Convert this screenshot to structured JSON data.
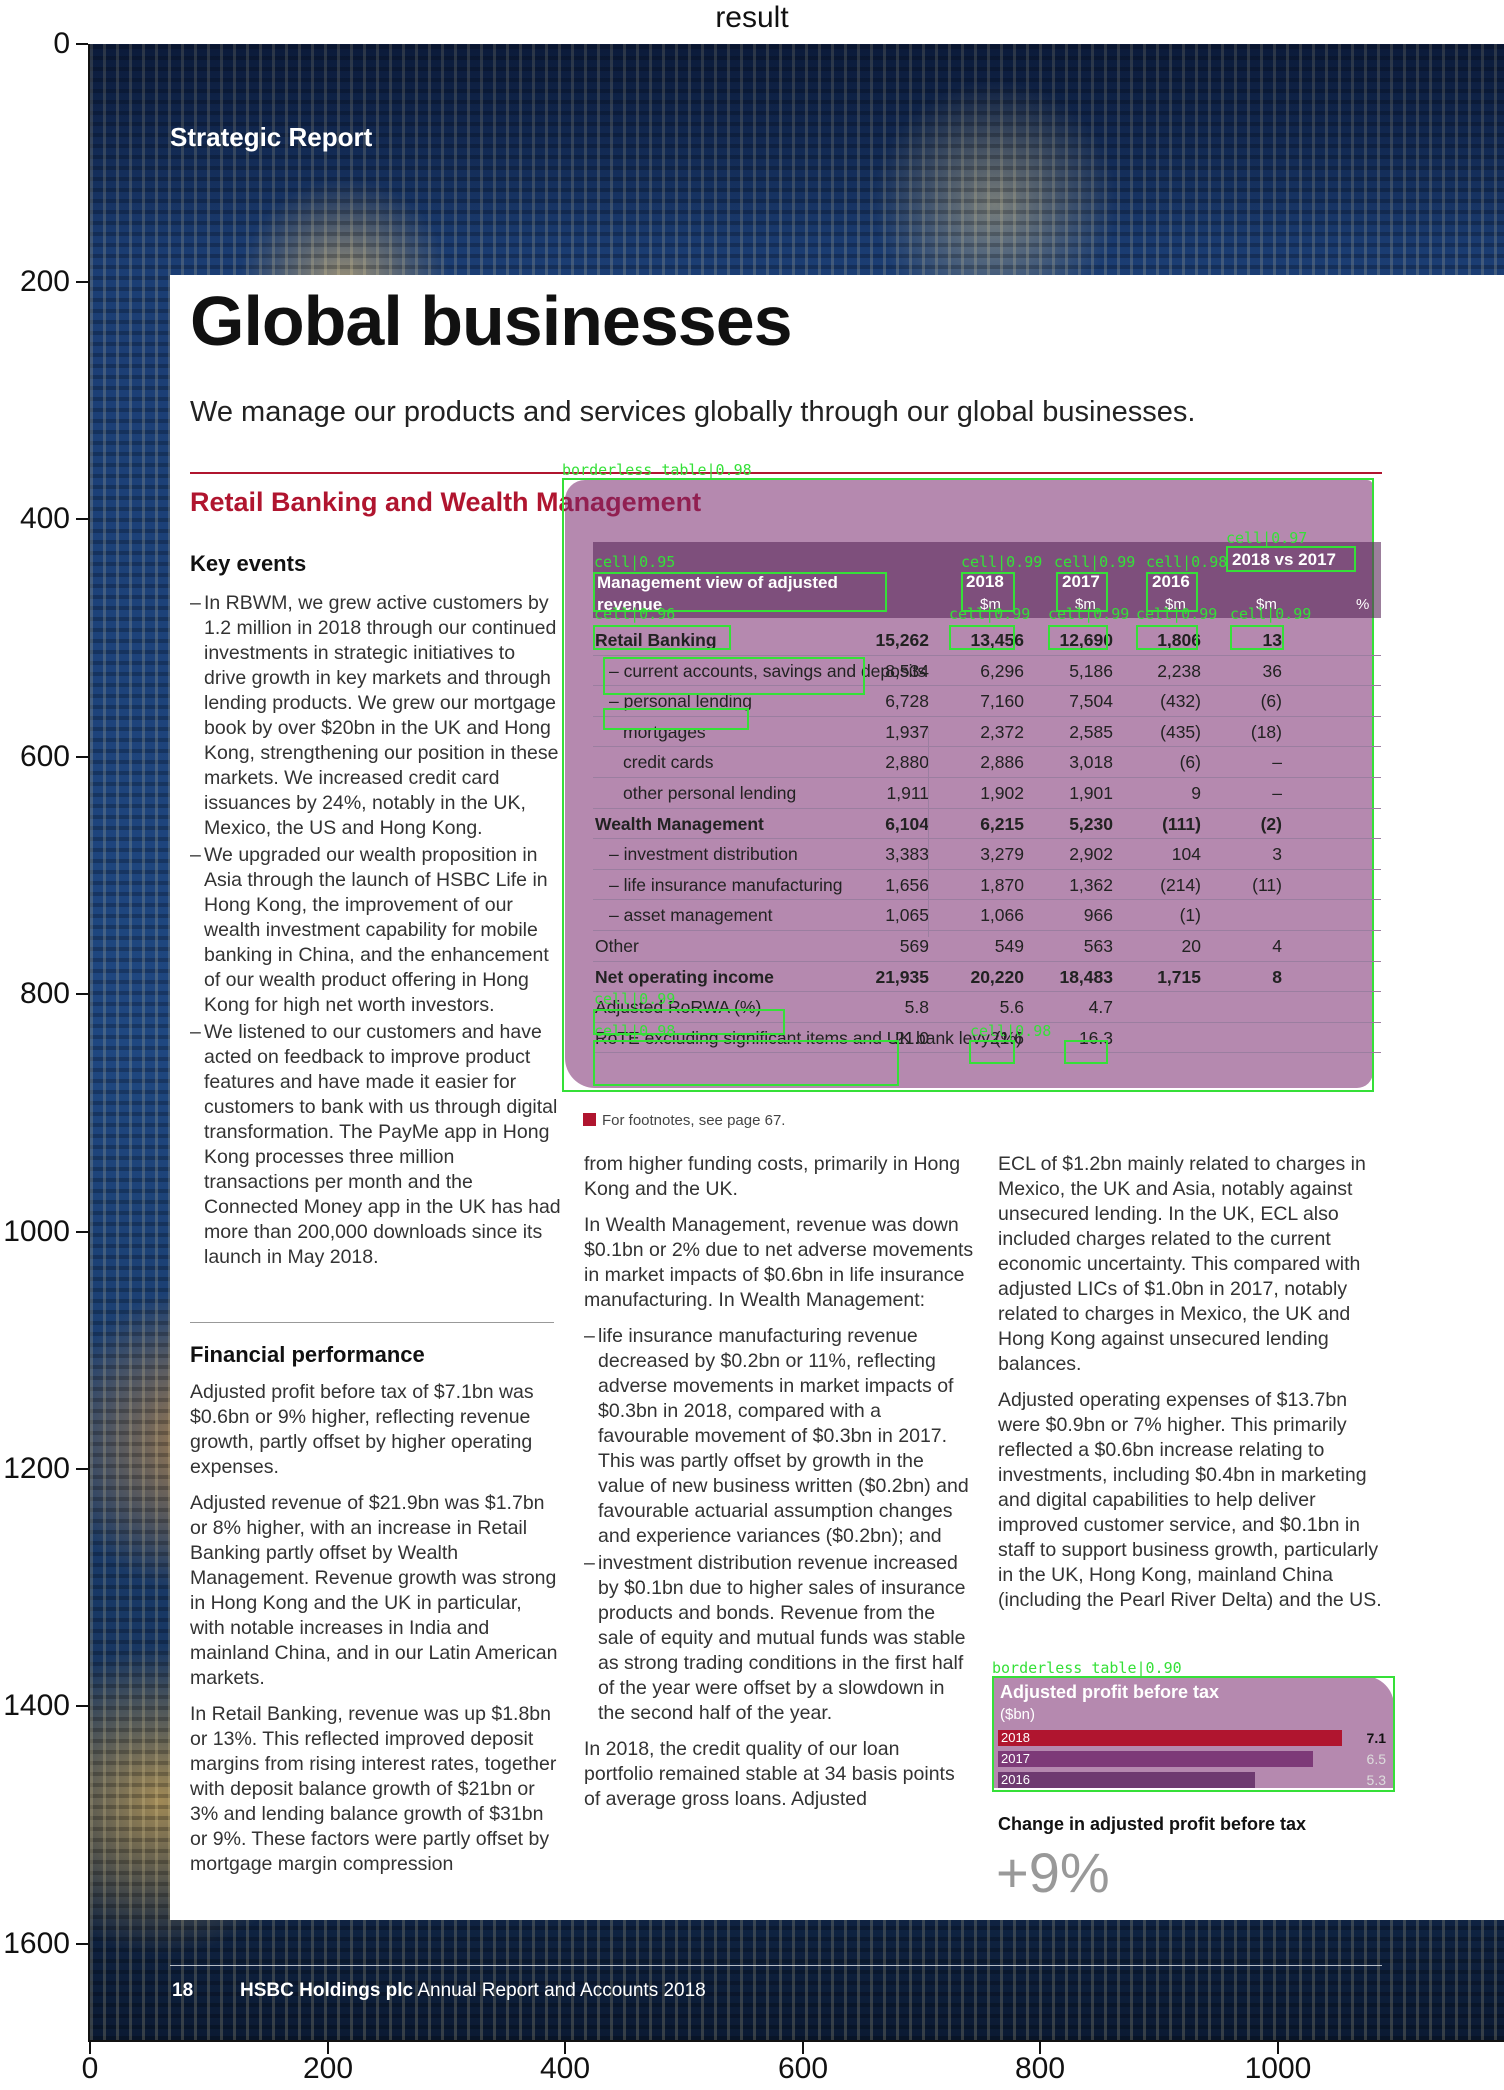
{
  "figure_title": "result",
  "axes": {
    "y_ticks": [
      "0",
      "200",
      "400",
      "600",
      "800",
      "1000",
      "1200",
      "1400",
      "1600"
    ],
    "x_ticks": [
      "0",
      "200",
      "400",
      "600",
      "800",
      "1000"
    ]
  },
  "header": {
    "section": "Strategic Report"
  },
  "page": {
    "title": "Global businesses",
    "subtitle": "We manage our products and services globally through our global businesses."
  },
  "section": {
    "title": "Retail Banking and Wealth Management"
  },
  "key_events": {
    "heading": "Key events",
    "items": [
      "In RBWM, we grew active customers by 1.2 million in 2018 through our continued investments in strategic initiatives to drive growth in key markets and through lending products. We grew our mortgage book by over $20bn in the UK and Hong Kong, strengthening our position in these markets. We increased credit card issuances by 24%, notably in the UK, Mexico, the US and Hong Kong.",
      "We upgraded our wealth proposition in Asia through the launch of HSBC Life in Hong Kong, the improvement of our wealth investment capability for mobile banking in China, and the enhancement of our wealth product offering in Hong Kong for high net worth investors.",
      "We listened to our customers and have acted on feedback to improve product features and have made it easier for customers to bank with us through digital transformation. The PayMe app in Hong Kong processes three million transactions per month and the Connected Money app in the UK has had more than 200,000 downloads since its launch in May 2018."
    ]
  },
  "financial_performance": {
    "heading": "Financial performance",
    "paragraphs": [
      "Adjusted profit before tax of $7.1bn was $0.6bn or 9% higher, reflecting revenue growth, partly offset by higher operating expenses.",
      "Adjusted revenue of $21.9bn was $1.7bn or 8% higher, with an increase in Retail Banking partly offset by Wealth Management. Revenue growth was strong in Hong Kong and the UK in particular, with notable increases in India and mainland China, and in our Latin American markets.",
      "In Retail Banking, revenue was up $1.8bn or 13%. This reflected improved deposit margins from rising interest rates, together with deposit balance growth of $21bn or 3% and lending balance growth of $31bn or 9%. These factors were partly offset by mortgage margin compression"
    ]
  },
  "middle_column": {
    "p1": "from higher funding costs, primarily in Hong Kong and the UK.",
    "p2": "In Wealth Management, revenue was down $0.1bn or 2% due to net adverse movements in market impacts of $0.6bn in life insurance manufacturing. In Wealth Management:",
    "items": [
      "life insurance manufacturing revenue decreased by $0.2bn or 11%, reflecting adverse movements in market impacts of $0.3bn in 2018, compared with a favourable movement of $0.3bn in 2017. This was partly offset by growth in the value of new business written ($0.2bn) and favourable actuarial assumption changes and experience variances ($0.2bn); and",
      "investment distribution revenue increased by $0.1bn due to higher sales of insurance products and bonds. Revenue from the sale of equity and mutual funds was stable as strong trading conditions in the first half of the year were offset by a slowdown in the second half of the year."
    ],
    "p3": "In 2018, the credit quality of our loan portfolio remained stable at 34 basis points of average gross loans. Adjusted"
  },
  "right_column": {
    "p1": "ECL of $1.2bn mainly related to charges in Mexico, the UK and Asia, notably against unsecured lending. In the UK, ECL also included charges related to the current economic uncertainty. This compared with adjusted LICs of $1.0bn in 2017, notably related to charges in Mexico, the UK and Hong Kong against unsecured lending balances.",
    "p2": "Adjusted operating expenses of $13.7bn were $0.9bn or 7% higher. This primarily reflected a $0.6bn increase relating to investments, including $0.4bn in marketing and digital capabilities to help deliver improved customer service, and $0.1bn in staff to support business growth, particularly in the UK, Hong Kong, mainland China (including the Pearl River Delta) and the US."
  },
  "detection": {
    "table_tag": "borderless_table|0.98",
    "chart_tag": "borderless_table|0.90",
    "cell_tags": [
      "cell|0.95",
      "cell|0.99",
      "cell|0.99",
      "cell|0.98",
      "cell|0.97",
      "cell|0.96",
      "cell|0.99",
      "cell|0.99",
      "cell|0.99",
      "cell|0.99",
      "cell|0.99",
      "cell|0.98",
      "cell|0.98"
    ]
  },
  "table": {
    "header_label": "Management view of adjusted revenue",
    "columns": [
      "2018",
      "2017",
      "2016",
      "2018 vs 2017"
    ],
    "unit_labels": [
      "$m",
      "$m",
      "$m",
      "$m",
      "%"
    ],
    "rows": [
      {
        "label": "Retail Banking",
        "level": 0,
        "bold": true,
        "v": [
          "15,262",
          "13,456",
          "12,690",
          "1,806",
          "13"
        ]
      },
      {
        "label": "current accounts, savings and deposits",
        "level": 1,
        "bold": false,
        "v": [
          "8,534",
          "6,296",
          "5,186",
          "2,238",
          "36"
        ]
      },
      {
        "label": "personal lending",
        "level": 1,
        "bold": false,
        "v": [
          "6,728",
          "7,160",
          "7,504",
          "(432)",
          "(6)"
        ]
      },
      {
        "label": "mortgages",
        "level": 2,
        "bold": false,
        "v": [
          "1,937",
          "2,372",
          "2,585",
          "(435)",
          "(18)"
        ]
      },
      {
        "label": "credit cards",
        "level": 2,
        "bold": false,
        "v": [
          "2,880",
          "2,886",
          "3,018",
          "(6)",
          "–"
        ]
      },
      {
        "label": "other personal lending",
        "level": 2,
        "bold": false,
        "v": [
          "1,911",
          "1,902",
          "1,901",
          "9",
          "–"
        ]
      },
      {
        "label": "Wealth Management",
        "level": 0,
        "bold": true,
        "v": [
          "6,104",
          "6,215",
          "5,230",
          "(111)",
          "(2)"
        ]
      },
      {
        "label": "investment distribution",
        "level": 1,
        "bold": false,
        "v": [
          "3,383",
          "3,279",
          "2,902",
          "104",
          "3"
        ]
      },
      {
        "label": "life insurance manufacturing",
        "level": 1,
        "bold": false,
        "v": [
          "1,656",
          "1,870",
          "1,362",
          "(214)",
          "(11)"
        ]
      },
      {
        "label": "asset management",
        "level": 1,
        "bold": false,
        "v": [
          "1,065",
          "1,066",
          "966",
          "(1)",
          ""
        ]
      },
      {
        "label": "Other",
        "level": 0,
        "bold": false,
        "v": [
          "569",
          "549",
          "563",
          "20",
          "4"
        ]
      },
      {
        "label": "Net operating income",
        "level": 0,
        "bold": true,
        "v": [
          "21,935",
          "20,220",
          "18,483",
          "1,715",
          "8"
        ]
      },
      {
        "label": "Adjusted RoRWA (%)",
        "level": 0,
        "bold": false,
        "v": [
          "5.8",
          "5.6",
          "4.7",
          "",
          ""
        ]
      },
      {
        "label": "RoTE excluding significant items and UK bank levy (%)",
        "level": 0,
        "bold": false,
        "v": [
          "21.0",
          "21.6",
          "16.3",
          "",
          ""
        ]
      }
    ]
  },
  "footnote": "For footnotes, see page 67.",
  "profit_chart": {
    "title": "Adjusted profit before tax",
    "unit": "($bn)",
    "colors": {
      "2018": "#b0152f",
      "2017": "#7d3a78",
      "2016": "#6e3a70"
    }
  },
  "chart_data": {
    "type": "bar",
    "title": "Adjusted profit before tax",
    "ylabel": "($bn)",
    "categories": [
      "2018",
      "2017",
      "2016"
    ],
    "values": [
      7.1,
      6.5,
      5.3
    ],
    "value_labels": [
      "7.1",
      "6.5",
      "5.3"
    ],
    "ylim": [
      0,
      7.1
    ],
    "orientation": "horizontal"
  },
  "change": {
    "heading": "Change in adjusted profit before tax",
    "value": "+9%"
  },
  "footer": {
    "page_number": "18",
    "company": "HSBC Holdings plc",
    "doc": "Annual Report and Accounts 2018"
  }
}
